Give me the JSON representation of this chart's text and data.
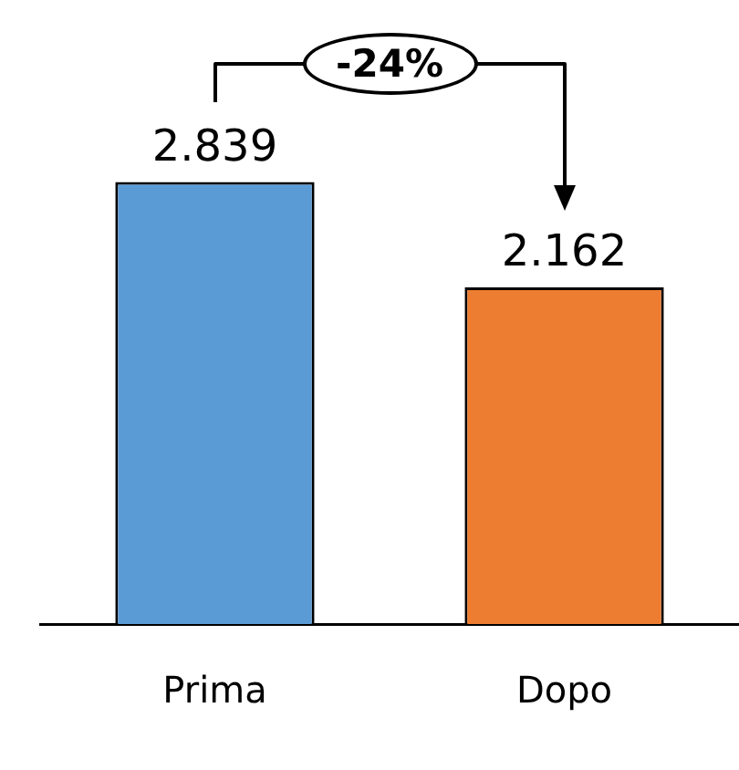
{
  "chart_data": {
    "type": "bar",
    "categories": [
      "Prima",
      "Dopo"
    ],
    "values": [
      2.839,
      2.162
    ],
    "colors": [
      "#5b9bd5",
      "#ed7d31"
    ],
    "data_labels": true,
    "grid": false,
    "legend": false,
    "tick_labels": "x",
    "annotations": [
      "-24%"
    ]
  }
}
